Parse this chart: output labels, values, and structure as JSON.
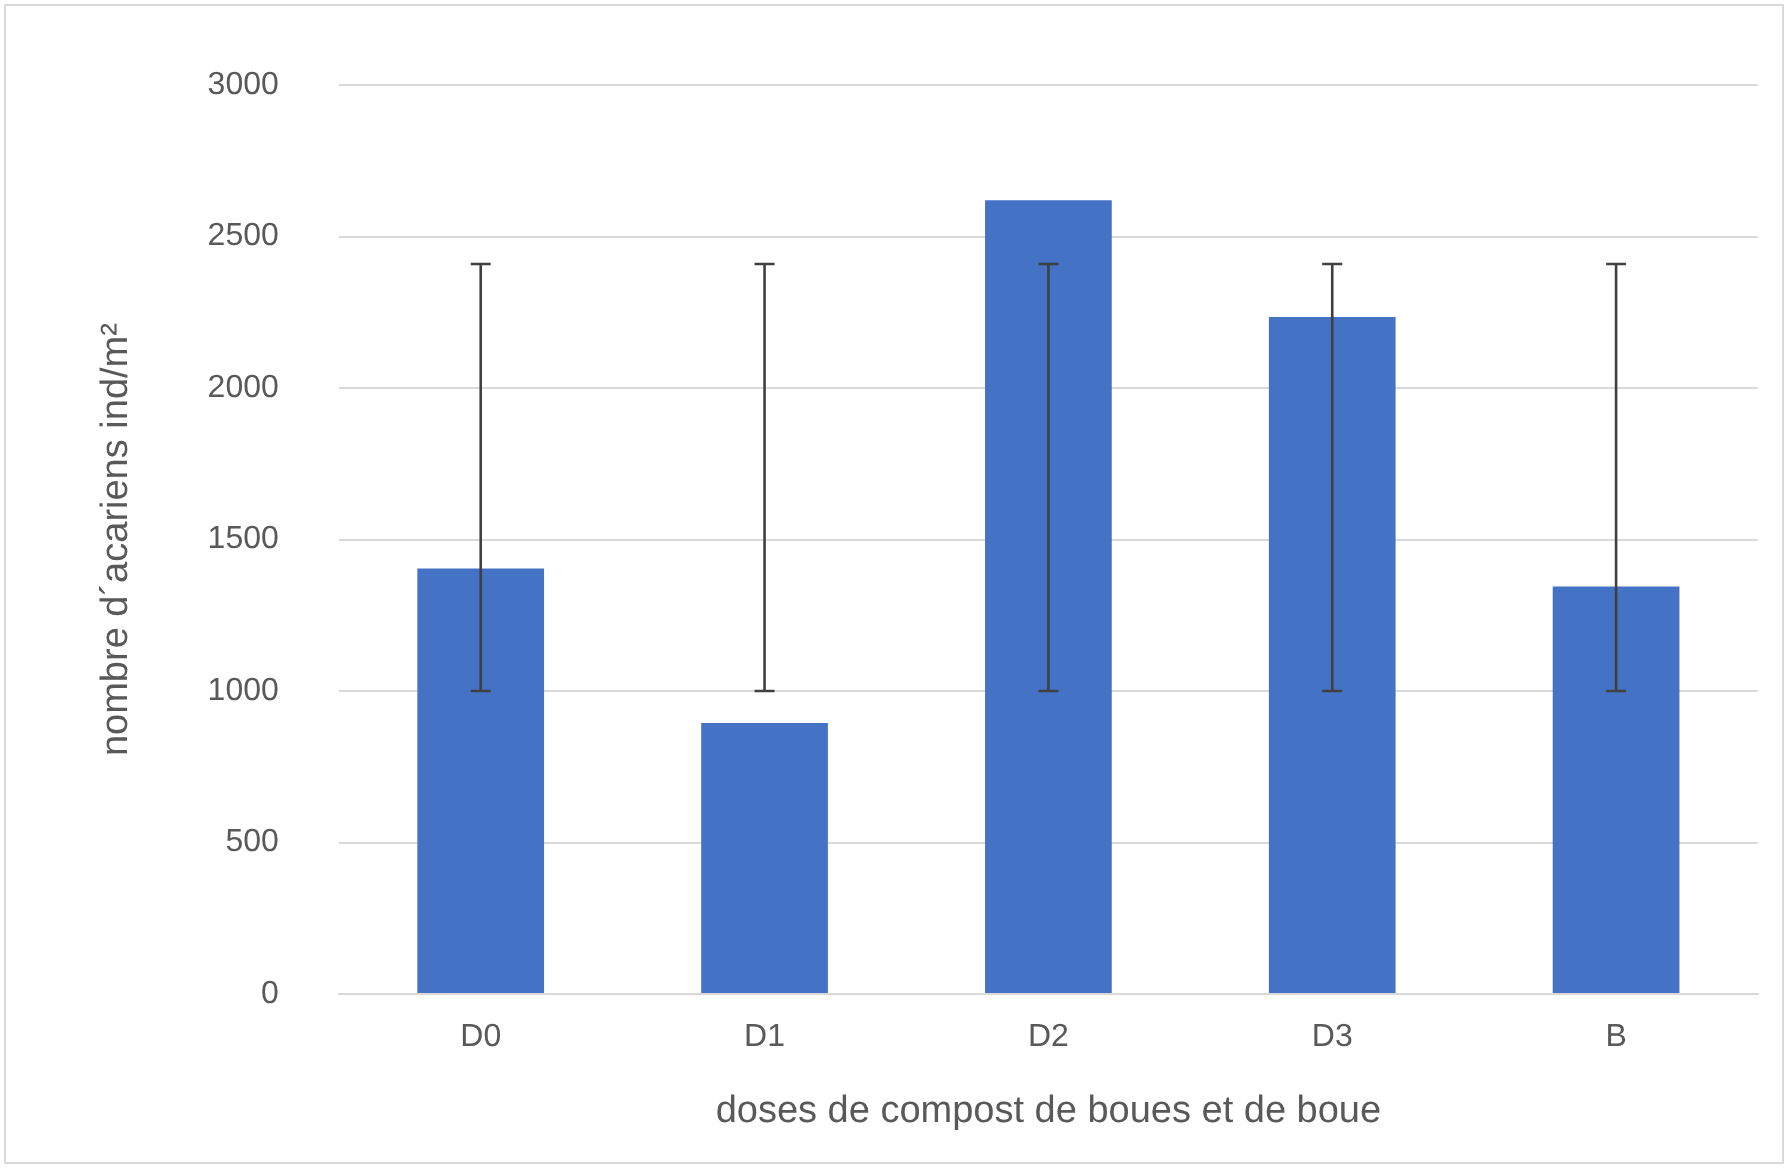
{
  "chart_data": {
    "type": "bar",
    "xlabel": "doses de compost de boues et de boue",
    "ylabel": "nombre d´acariens ind/m²",
    "categories": [
      "D0",
      "D1",
      "D2",
      "D3",
      "B"
    ],
    "values": [
      1405,
      895,
      2620,
      2235,
      1345
    ],
    "errors": [
      [
        1000,
        2410
      ],
      [
        1000,
        2410
      ],
      [
        1000,
        2410
      ],
      [
        1000,
        2410
      ],
      [
        1000,
        2410
      ]
    ],
    "color": "#4472c4",
    "ylim": [
      0,
      3000
    ],
    "yticks": [
      0,
      500,
      1000,
      1500,
      2000,
      2500,
      3000
    ],
    "grid": "y",
    "legend": false
  }
}
